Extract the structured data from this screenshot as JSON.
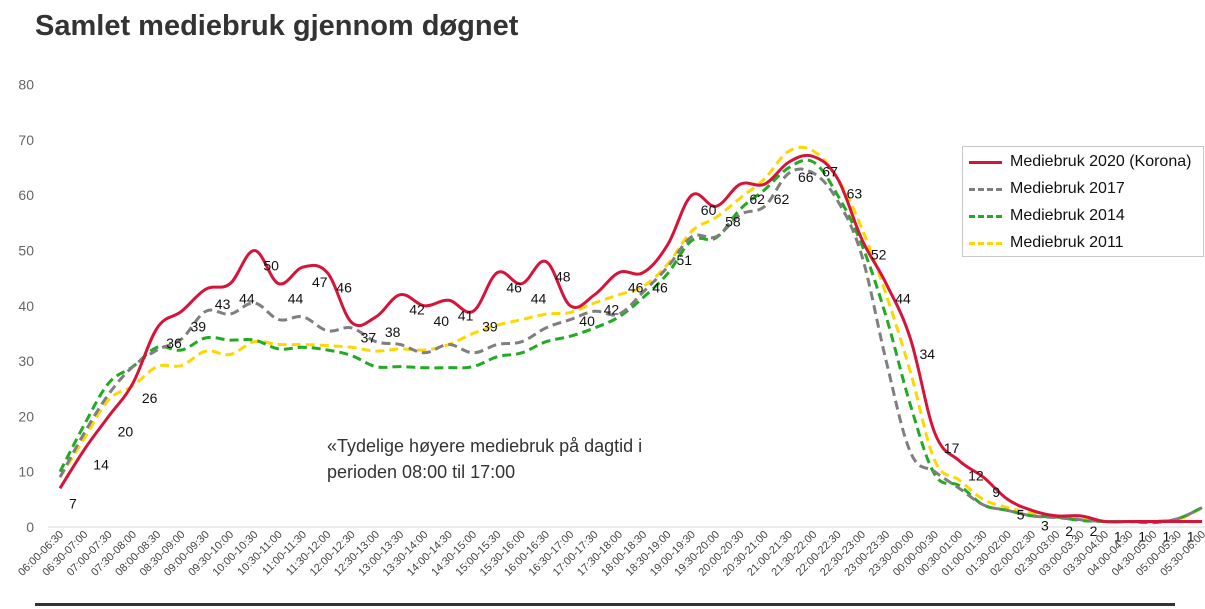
{
  "title": "Samlet mediebruk gjennom døgnet",
  "annotation_line1": "«Tydelige høyere mediebruk på dagtid i",
  "annotation_line2": "perioden 08:00 til 17:00",
  "chart_data": {
    "type": "line",
    "title": "Samlet mediebruk gjennom døgnet",
    "ylim": [
      0,
      80
    ],
    "yticks": [
      0,
      10,
      20,
      30,
      40,
      50,
      60,
      70,
      80
    ],
    "grid": "none",
    "legend_position": "top-right",
    "categories": [
      "06:00-06:30",
      "06:30-07:00",
      "07:00-07:30",
      "07:30-08:00",
      "08:00-08:30",
      "08:30-09:00",
      "09:00-09:30",
      "09:30-10:00",
      "10:00-10:30",
      "10:30-11:00",
      "11:00-11:30",
      "11:30-12:00",
      "12:00-12:30",
      "12:30-13:00",
      "13:00-13:30",
      "13:30-14:00",
      "14:00-14:30",
      "14:30-15:00",
      "15:00-15:30",
      "15:30-16:00",
      "16:00-16:30",
      "16:30-17:00",
      "17:00-17:30",
      "17:30-18:00",
      "18:00-18:30",
      "18:30-19:00",
      "19:00-19:30",
      "19:30-20:00",
      "20:00-20:30",
      "20:30-21:00",
      "21:00-21:30",
      "21:30-22:00",
      "22:00-22:30",
      "22:30-23:00",
      "23:00-23:30",
      "23:30-00:00",
      "00:00-00:30",
      "00:30-01:00",
      "01:00-01:30",
      "01:30-02:00",
      "02:00-02:30",
      "02:30-03:00",
      "03:00-03:30",
      "03:30-04:00",
      "04:00-04:30",
      "04:30-05:00",
      "05:00-05:30",
      "05:30-06:00"
    ],
    "series": [
      {
        "name": "Mediebruk 2020 (Korona)",
        "color": "#d6143a",
        "dash": "solid",
        "values": [
          7,
          14,
          20,
          26,
          36,
          39,
          43,
          44,
          50,
          44,
          47,
          46,
          37,
          38,
          42,
          40,
          41,
          39,
          46,
          44,
          48,
          40,
          42,
          46,
          46,
          51,
          60,
          58,
          62,
          62,
          66,
          67,
          63,
          52,
          44,
          34,
          17,
          12,
          9,
          5,
          3,
          2,
          2,
          1,
          1,
          1,
          1,
          1
        ]
      },
      {
        "name": "Mediebruk 2017",
        "color": "#7f7f7f",
        "dash": "dashed",
        "values": [
          9,
          17,
          24,
          29,
          32,
          34,
          39,
          38.5,
          40.5,
          37.5,
          38,
          35.5,
          36,
          33.5,
          33,
          31.5,
          33,
          31.5,
          33,
          33.5,
          36,
          37.5,
          39,
          38.5,
          42.5,
          47,
          52.5,
          52.5,
          56.5,
          58,
          64,
          64,
          59,
          49,
          30,
          13.5,
          10,
          7,
          4,
          3,
          2,
          1.7,
          1.3,
          1,
          1,
          1,
          1.5,
          3.5
        ]
      },
      {
        "name": "Mediebruk 2014",
        "color": "#22aa22",
        "dash": "dashed",
        "values": [
          10,
          18.5,
          26,
          29,
          32.5,
          32,
          34.2,
          33.8,
          33.8,
          32.2,
          32.5,
          32,
          31,
          29,
          29,
          28.8,
          28.8,
          29,
          30.8,
          31.5,
          33.5,
          34.5,
          36,
          38,
          41.5,
          45.8,
          51.8,
          52.3,
          57.5,
          61,
          65,
          66,
          60,
          51,
          38,
          22,
          9.5,
          7.5,
          4,
          3,
          2,
          1.8,
          1.2,
          1,
          1,
          0.8,
          1.5,
          3.5
        ]
      },
      {
        "name": "Mediebruk 2011",
        "color": "#ffd700",
        "dash": "dashed",
        "values": [
          9,
          16,
          23,
          25.5,
          29,
          29.2,
          31.8,
          31.2,
          33.5,
          33,
          33,
          32.8,
          32.5,
          31.8,
          32.2,
          32,
          33,
          35,
          36.5,
          37.5,
          38.5,
          38.8,
          40.5,
          42,
          43.5,
          47.5,
          53.5,
          56,
          59.5,
          63,
          68,
          68,
          63,
          54,
          42,
          28,
          12,
          8.5,
          5,
          3.5,
          2.5,
          1.8,
          1.5,
          1,
          1,
          1,
          1.3,
          3.5
        ]
      }
    ],
    "data_labels": {
      "series": "Mediebruk 2020 (Korona)",
      "values": [
        "7",
        "14",
        "20",
        "26",
        "36",
        "39",
        "43",
        "44",
        "50",
        "44",
        "47",
        "46",
        "37",
        "38",
        "42",
        "40",
        "41",
        "39",
        "46",
        "44",
        "48",
        "40",
        "42",
        "46",
        "46",
        "51",
        "60",
        "58",
        "62",
        "62",
        "66",
        "67",
        "63",
        "52",
        "44",
        "34",
        "17",
        "12",
        "9",
        "5",
        "3",
        "2",
        "2",
        "1",
        "1",
        "1",
        "1",
        "1"
      ]
    }
  }
}
